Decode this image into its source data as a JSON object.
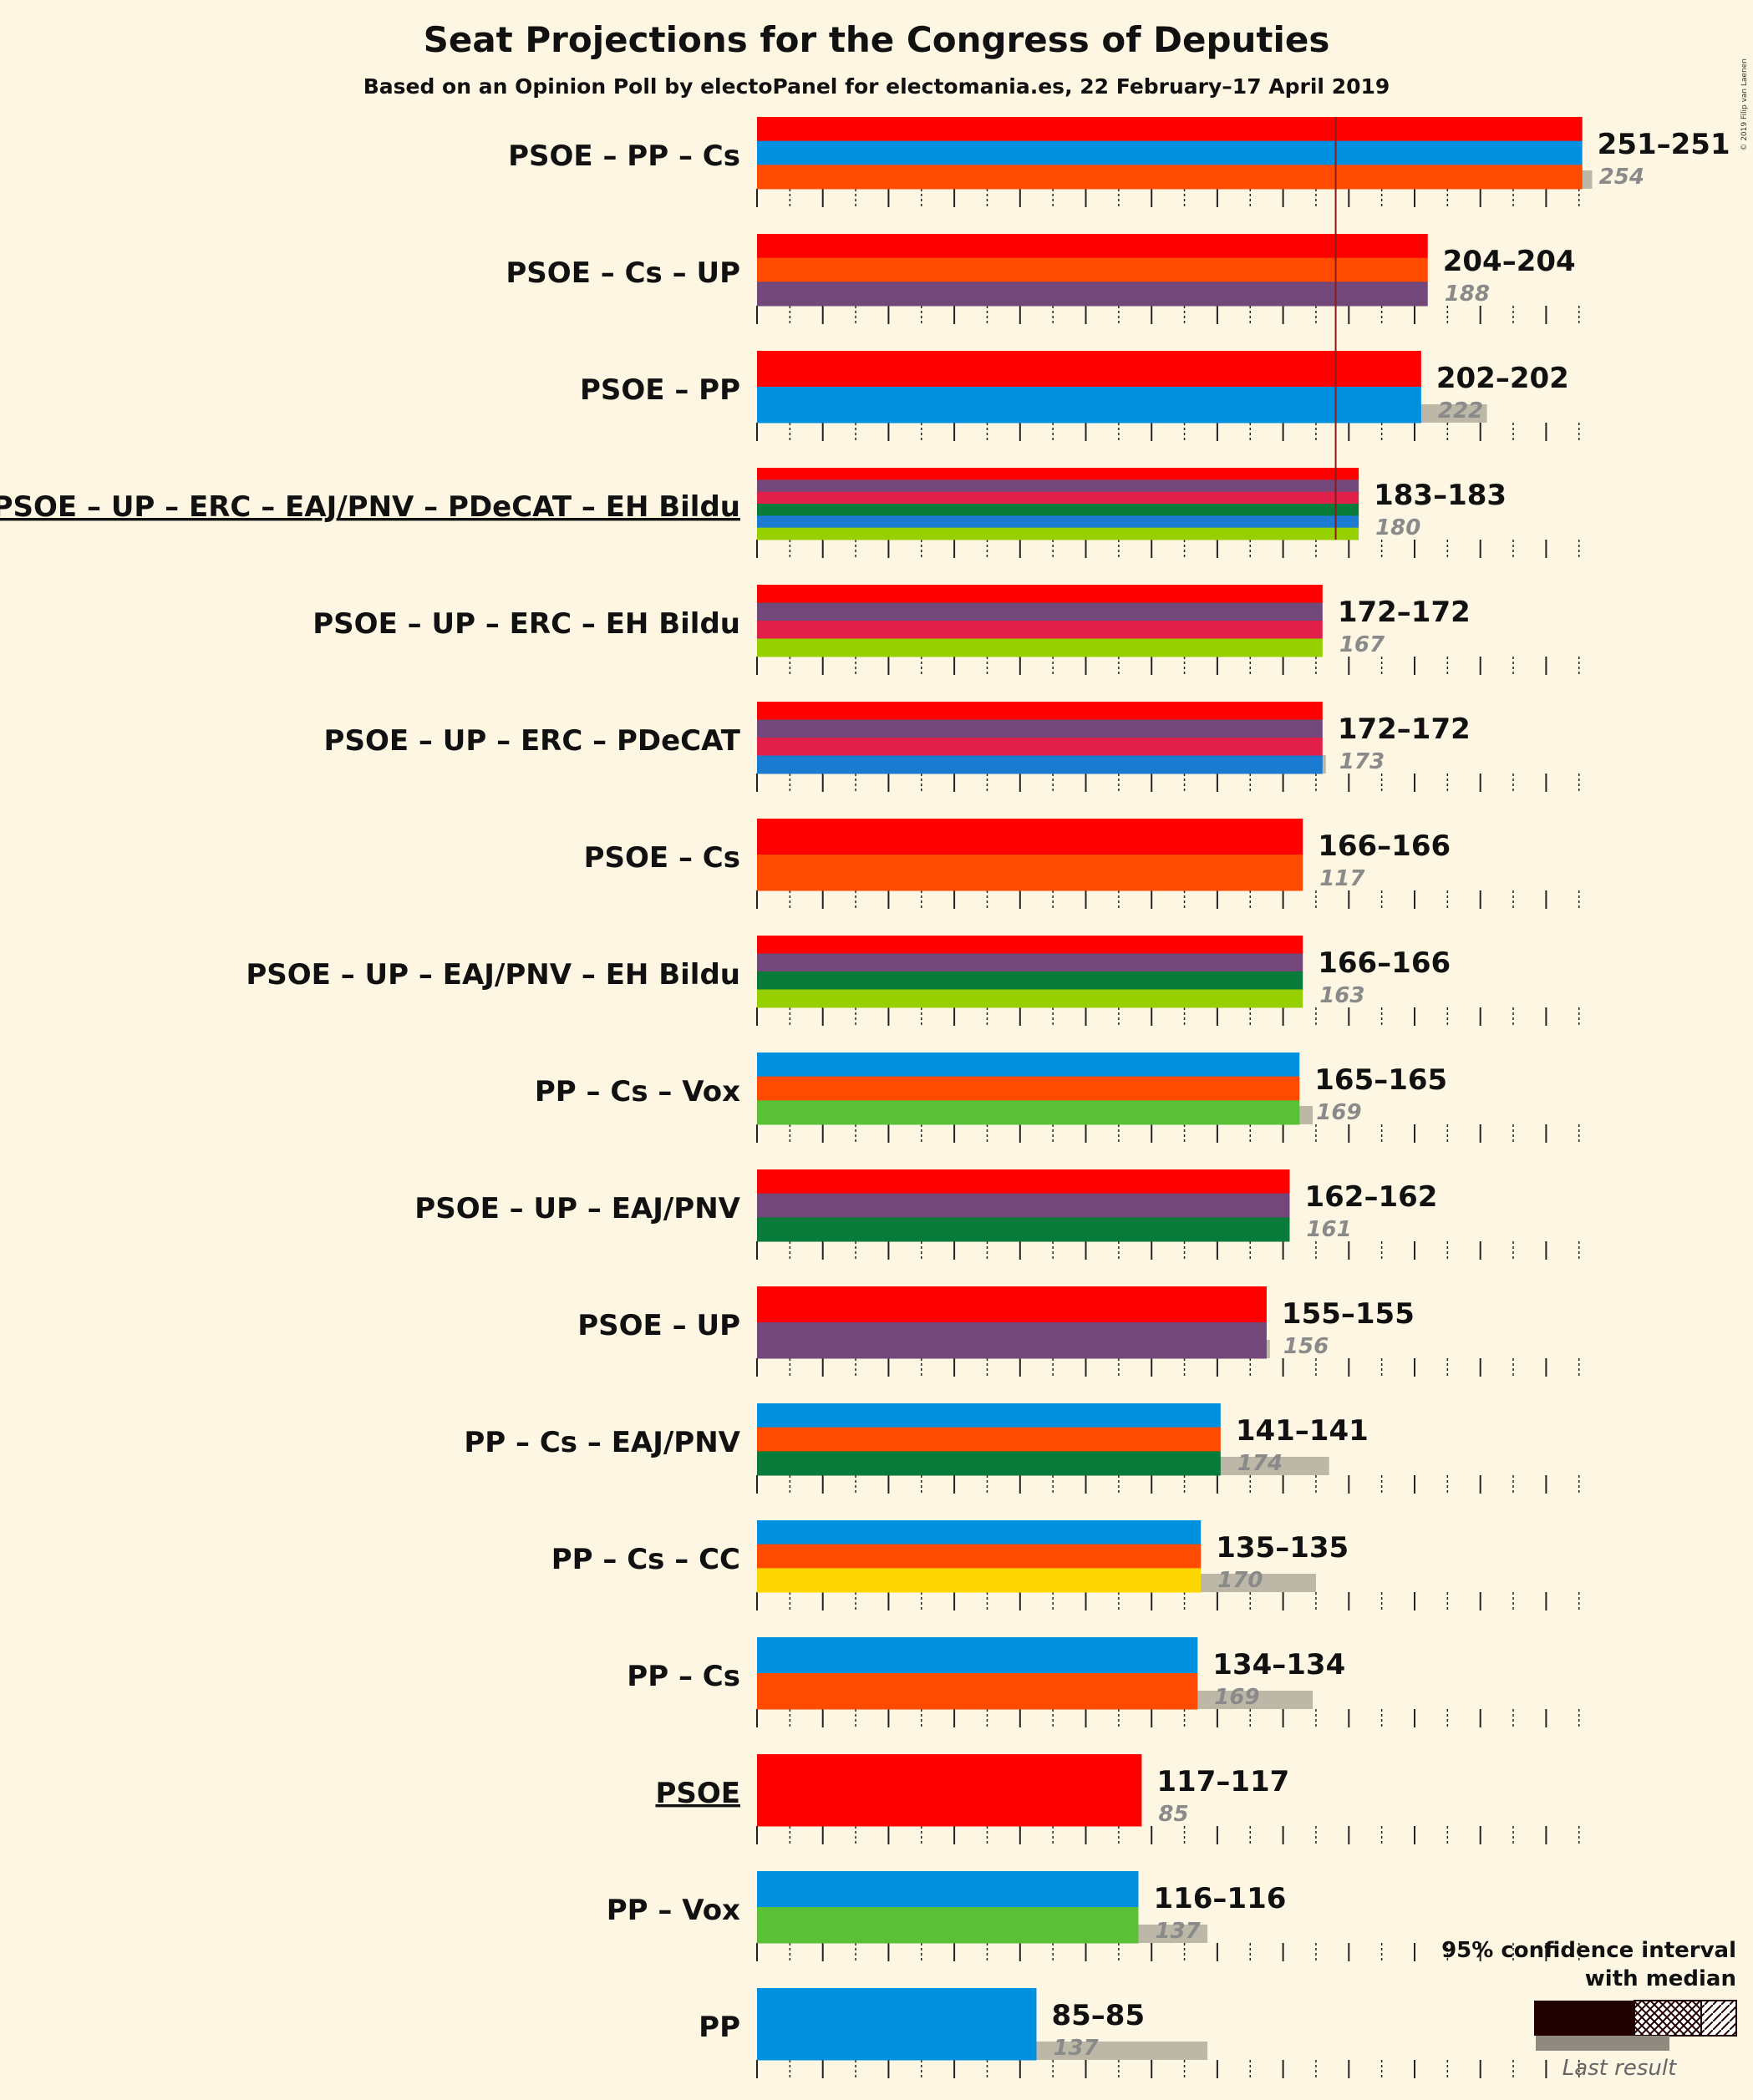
{
  "title": "Seat Projections for the Congress of Deputies",
  "subtitle": "Based on an Opinion Poll by electoPanel for electomania.es, 22 February–17 April 2019",
  "copyright": "© 2019 Filip van Laenen",
  "legend": {
    "ci_line1": "95% confidence interval",
    "ci_line2": "with median",
    "last_result": "Last result"
  },
  "colors": {
    "PSOE": "#ff0000",
    "PP": "#0090e0",
    "Cs": "#ff4b00",
    "UP": "#714879",
    "ERC": "#e0204a",
    "EAJ/PNV": "#087a3a",
    "PDeCAT": "#1a7bd0",
    "EH Bildu": "#96d000",
    "Vox": "#5ac035",
    "CC": "#ffd700",
    "last_result_bar": "#bdb7a8",
    "majority_line": "#8b1a1a",
    "background": "#fdf6e3"
  },
  "chart_data": {
    "type": "bar",
    "orientation": "horizontal",
    "majority": 176,
    "xlim": [
      0,
      280
    ],
    "coalitions": [
      {
        "label": "PSOE – PP – Cs",
        "parties": [
          "PSOE",
          "PP",
          "Cs"
        ],
        "low": 251,
        "median": 251,
        "high": 251,
        "range": "251–251",
        "last": 254,
        "last_label": "254",
        "underline": false
      },
      {
        "label": "PSOE – Cs – UP",
        "parties": [
          "PSOE",
          "Cs",
          "UP"
        ],
        "low": 204,
        "median": 204,
        "high": 204,
        "range": "204–204",
        "last": 188,
        "last_label": "188",
        "underline": false
      },
      {
        "label": "PSOE – PP",
        "parties": [
          "PSOE",
          "PP"
        ],
        "low": 202,
        "median": 202,
        "high": 202,
        "range": "202–202",
        "last": 222,
        "last_label": "222",
        "underline": false
      },
      {
        "label": "PSOE – UP – ERC – EAJ/PNV – PDeCAT – EH Bildu",
        "parties": [
          "PSOE",
          "UP",
          "ERC",
          "EAJ/PNV",
          "PDeCAT",
          "EH Bildu"
        ],
        "low": 183,
        "median": 183,
        "high": 183,
        "range": "183–183",
        "last": 180,
        "last_label": "180",
        "underline": true
      },
      {
        "label": "PSOE – UP – ERC – EH Bildu",
        "parties": [
          "PSOE",
          "UP",
          "ERC",
          "EH Bildu"
        ],
        "low": 172,
        "median": 172,
        "high": 172,
        "range": "172–172",
        "last": 167,
        "last_label": "167",
        "underline": false
      },
      {
        "label": "PSOE – UP – ERC – PDeCAT",
        "parties": [
          "PSOE",
          "UP",
          "ERC",
          "PDeCAT"
        ],
        "low": 172,
        "median": 172,
        "high": 172,
        "range": "172–172",
        "last": 173,
        "last_label": "173",
        "underline": false
      },
      {
        "label": "PSOE – Cs",
        "parties": [
          "PSOE",
          "Cs"
        ],
        "low": 166,
        "median": 166,
        "high": 166,
        "range": "166–166",
        "last": 117,
        "last_label": "117",
        "underline": false
      },
      {
        "label": "PSOE – UP – EAJ/PNV – EH Bildu",
        "parties": [
          "PSOE",
          "UP",
          "EAJ/PNV",
          "EH Bildu"
        ],
        "low": 166,
        "median": 166,
        "high": 166,
        "range": "166–166",
        "last": 163,
        "last_label": "163",
        "underline": false
      },
      {
        "label": "PP – Cs – Vox",
        "parties": [
          "PP",
          "Cs",
          "Vox"
        ],
        "low": 165,
        "median": 165,
        "high": 165,
        "range": "165–165",
        "last": 169,
        "last_label": "169",
        "underline": false
      },
      {
        "label": "PSOE – UP – EAJ/PNV",
        "parties": [
          "PSOE",
          "UP",
          "EAJ/PNV"
        ],
        "low": 162,
        "median": 162,
        "high": 162,
        "range": "162–162",
        "last": 161,
        "last_label": "161",
        "underline": false
      },
      {
        "label": "PSOE – UP",
        "parties": [
          "PSOE",
          "UP"
        ],
        "low": 155,
        "median": 155,
        "high": 155,
        "range": "155–155",
        "last": 156,
        "last_label": "156",
        "underline": false
      },
      {
        "label": "PP – Cs – EAJ/PNV",
        "parties": [
          "PP",
          "Cs",
          "EAJ/PNV"
        ],
        "low": 141,
        "median": 141,
        "high": 141,
        "range": "141–141",
        "last": 174,
        "last_label": "174",
        "underline": false
      },
      {
        "label": "PP – Cs – CC",
        "parties": [
          "PP",
          "Cs",
          "CC"
        ],
        "low": 135,
        "median": 135,
        "high": 135,
        "range": "135–135",
        "last": 170,
        "last_label": "170",
        "underline": false
      },
      {
        "label": "PP – Cs",
        "parties": [
          "PP",
          "Cs"
        ],
        "low": 134,
        "median": 134,
        "high": 134,
        "range": "134–134",
        "last": 169,
        "last_label": "169",
        "underline": false
      },
      {
        "label": "PSOE",
        "parties": [
          "PSOE"
        ],
        "low": 117,
        "median": 117,
        "high": 117,
        "range": "117–117",
        "last": 85,
        "last_label": "85",
        "underline": true
      },
      {
        "label": "PP – Vox",
        "parties": [
          "PP",
          "Vox"
        ],
        "low": 116,
        "median": 116,
        "high": 116,
        "range": "116–116",
        "last": 137,
        "last_label": "137",
        "underline": false
      },
      {
        "label": "PP",
        "parties": [
          "PP"
        ],
        "low": 85,
        "median": 85,
        "high": 85,
        "range": "85–85",
        "last": 137,
        "last_label": "137",
        "underline": false
      }
    ]
  }
}
